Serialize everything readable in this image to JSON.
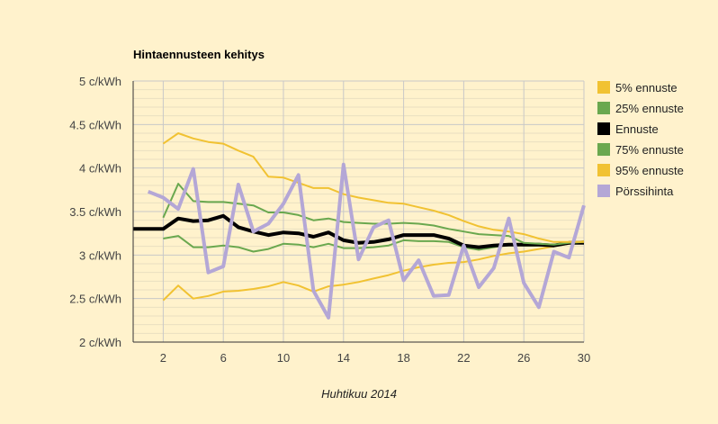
{
  "chart_data": {
    "type": "line",
    "title": "Hintaennusteen kehitys",
    "xlabel": "Huhtikuu 2014",
    "ylabel": "",
    "xlim": [
      0,
      30
    ],
    "ylim": [
      2,
      5
    ],
    "x_ticks": [
      2,
      6,
      10,
      14,
      18,
      22,
      26,
      30
    ],
    "y_ticks": [
      {
        "value": 2,
        "label": "2 c/kWh"
      },
      {
        "value": 2.5,
        "label": "2.5 c/kWh"
      },
      {
        "value": 3,
        "label": "3 c/kWh"
      },
      {
        "value": 3.5,
        "label": "3.5 c/kWh"
      },
      {
        "value": 4,
        "label": "4 c/kWh"
      },
      {
        "value": 4.5,
        "label": "4.5 c/kWh"
      },
      {
        "value": 5,
        "label": "5 c/kWh"
      }
    ],
    "grid": true,
    "legend_position": "right",
    "series": [
      {
        "name": "5% ennuste",
        "color": "#f1c232",
        "width": 2,
        "x": [
          2,
          3,
          4,
          5,
          6,
          7,
          8,
          9,
          10,
          11,
          12,
          13,
          14,
          15,
          16,
          17,
          18,
          19,
          20,
          21,
          22,
          23,
          24,
          25,
          26,
          27,
          28,
          29,
          30
        ],
        "values": [
          2.48,
          2.65,
          2.5,
          2.53,
          2.58,
          2.59,
          2.61,
          2.64,
          2.69,
          2.65,
          2.58,
          2.64,
          2.66,
          2.69,
          2.73,
          2.77,
          2.82,
          2.86,
          2.89,
          2.91,
          2.92,
          2.95,
          2.99,
          3.02,
          3.04,
          3.07,
          3.1,
          3.13,
          3.16
        ]
      },
      {
        "name": "25% ennuste",
        "color": "#6aa84f",
        "width": 2,
        "x": [
          2,
          3,
          4,
          5,
          6,
          7,
          8,
          9,
          10,
          11,
          12,
          13,
          14,
          15,
          16,
          17,
          18,
          19,
          20,
          21,
          22,
          23,
          24,
          25,
          26,
          27,
          28,
          29,
          30
        ],
        "values": [
          3.19,
          3.22,
          3.09,
          3.09,
          3.11,
          3.09,
          3.04,
          3.07,
          3.13,
          3.12,
          3.09,
          3.13,
          3.08,
          3.08,
          3.09,
          3.11,
          3.17,
          3.16,
          3.16,
          3.15,
          3.09,
          3.06,
          3.09,
          3.12,
          3.11,
          3.11,
          3.11,
          3.14,
          3.15
        ]
      },
      {
        "name": "Ennuste",
        "color": "#000000",
        "width": 4,
        "x": [
          0,
          1,
          2,
          3,
          4,
          5,
          6,
          7,
          8,
          9,
          10,
          11,
          12,
          13,
          14,
          15,
          16,
          17,
          18,
          19,
          20,
          21,
          22,
          23,
          24,
          25,
          26,
          27,
          28,
          29,
          30
        ],
        "values": [
          3.3,
          3.3,
          3.3,
          3.42,
          3.39,
          3.4,
          3.45,
          3.32,
          3.27,
          3.23,
          3.26,
          3.25,
          3.21,
          3.26,
          3.17,
          3.14,
          3.15,
          3.18,
          3.23,
          3.23,
          3.23,
          3.19,
          3.11,
          3.09,
          3.11,
          3.12,
          3.12,
          3.12,
          3.11,
          3.14,
          3.14
        ]
      },
      {
        "name": "75% ennuste",
        "color": "#6aa84f",
        "width": 2,
        "x": [
          2,
          3,
          4,
          5,
          6,
          7,
          8,
          9,
          10,
          11,
          12,
          13,
          14,
          15,
          16,
          17,
          18,
          19,
          20,
          21,
          22,
          23,
          24,
          25,
          26,
          27,
          28,
          29,
          30
        ],
        "values": [
          3.43,
          3.82,
          3.62,
          3.61,
          3.61,
          3.59,
          3.57,
          3.49,
          3.49,
          3.46,
          3.4,
          3.42,
          3.38,
          3.37,
          3.36,
          3.36,
          3.37,
          3.36,
          3.34,
          3.3,
          3.27,
          3.24,
          3.23,
          3.22,
          3.14,
          3.13,
          3.12,
          3.14,
          3.15
        ]
      },
      {
        "name": "95% ennuste",
        "color": "#f1c232",
        "width": 2,
        "x": [
          2,
          3,
          4,
          5,
          6,
          7,
          8,
          9,
          10,
          11,
          12,
          13,
          14,
          15,
          16,
          17,
          18,
          19,
          20,
          21,
          22,
          23,
          24,
          25,
          26,
          27,
          28,
          29,
          30
        ],
        "values": [
          4.28,
          4.4,
          4.34,
          4.3,
          4.28,
          4.2,
          4.13,
          3.9,
          3.89,
          3.83,
          3.77,
          3.77,
          3.7,
          3.66,
          3.63,
          3.6,
          3.59,
          3.55,
          3.51,
          3.46,
          3.39,
          3.33,
          3.29,
          3.27,
          3.24,
          3.19,
          3.15,
          3.15,
          3.15
        ]
      },
      {
        "name": "Pörssihinta",
        "color": "#b4a7d6",
        "width": 4,
        "x": [
          1,
          2,
          3,
          4,
          5,
          6,
          7,
          8,
          9,
          10,
          11,
          12,
          13,
          14,
          15,
          16,
          17,
          18,
          19,
          20,
          21,
          22,
          23,
          24,
          25,
          26,
          27,
          28,
          29,
          30
        ],
        "values": [
          3.73,
          3.66,
          3.53,
          3.99,
          2.8,
          2.87,
          3.81,
          3.27,
          3.36,
          3.59,
          3.92,
          2.59,
          2.28,
          4.04,
          2.95,
          3.32,
          3.4,
          2.71,
          2.94,
          2.53,
          2.54,
          3.11,
          2.63,
          2.85,
          3.42,
          2.68,
          2.4,
          3.04,
          2.97,
          3.57
        ]
      }
    ]
  }
}
